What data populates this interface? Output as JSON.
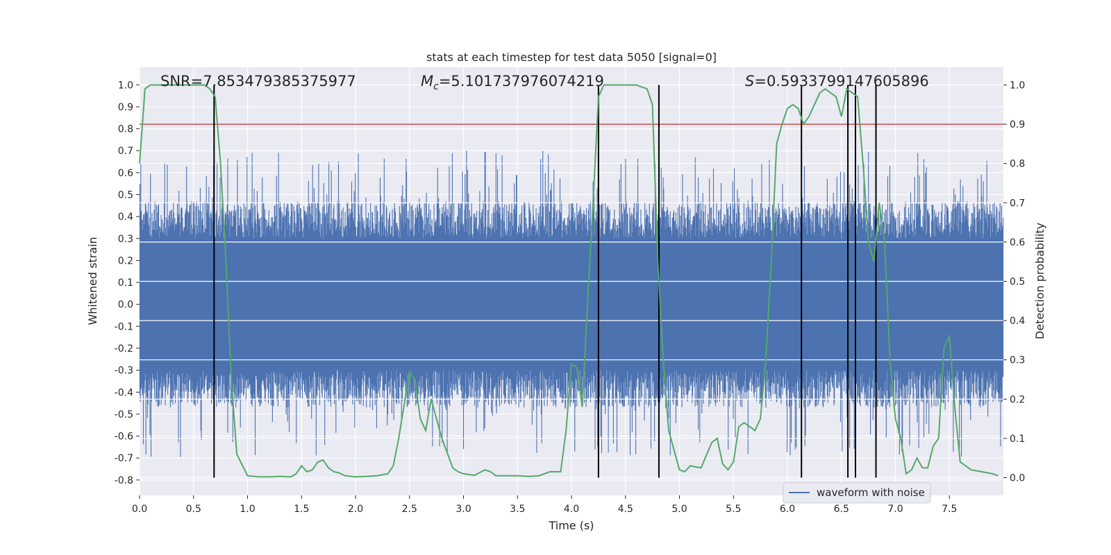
{
  "chart_data": {
    "type": "line",
    "title": "stats at each timestep for test data 5050 [signal=0]",
    "xlabel": "Time (s)",
    "ylabel_left": "Whitened strain",
    "ylabel_right": "Detection probability",
    "xlim": [
      0,
      8
    ],
    "ylim_left": [
      -0.87,
      1.08
    ],
    "ylim_right": [
      -0.045,
      1.045
    ],
    "x_ticks": [
      "0.0",
      "0.5",
      "1.0",
      "1.5",
      "2.0",
      "2.5",
      "3.0",
      "3.5",
      "4.0",
      "4.5",
      "5.0",
      "5.5",
      "6.0",
      "6.5",
      "7.0",
      "7.5"
    ],
    "y_left_ticks": [
      "-0.8",
      "-0.7",
      "-0.6",
      "-0.5",
      "-0.4",
      "-0.3",
      "-0.2",
      "-0.1",
      "0.0",
      "0.1",
      "0.2",
      "0.3",
      "0.4",
      "0.5",
      "0.6",
      "0.7",
      "0.8",
      "0.9",
      "1.0"
    ],
    "y_right_ticks": [
      "0.0",
      "0.1",
      "0.2",
      "0.3",
      "0.4",
      "0.5",
      "0.6",
      "0.7",
      "0.8",
      "0.9",
      "1.0"
    ],
    "grid": true,
    "annotations": {
      "snr": "SNR=7.853479385375977",
      "mc_sym": "M",
      "mc_sub": "c",
      "mc_val": "=5.101737976074219",
      "s_sym": "S",
      "s_val": "=0.5933799147605896"
    },
    "legend": {
      "placement": "lower-right",
      "entries": [
        "waveform with noise"
      ]
    },
    "series": [
      {
        "name": "waveform with noise",
        "axis": "left",
        "color": "#4c72b0",
        "description_stats": {
          "n_samples": 16384,
          "dense_band": [
            -0.3,
            0.3
          ],
          "typical_extreme": [
            -0.7,
            0.7
          ]
        }
      },
      {
        "axis": "right",
        "color": "#55a868",
        "x": [
          0.0,
          0.05,
          0.1,
          0.2,
          0.3,
          0.4,
          0.5,
          0.6,
          0.65,
          0.7,
          0.75,
          0.8,
          0.85,
          0.9,
          1.0,
          1.1,
          1.2,
          1.3,
          1.4,
          1.45,
          1.5,
          1.55,
          1.6,
          1.65,
          1.7,
          1.75,
          1.8,
          1.85,
          1.9,
          2.0,
          2.1,
          2.2,
          2.3,
          2.35,
          2.4,
          2.5,
          2.55,
          2.6,
          2.65,
          2.7,
          2.75,
          2.8,
          2.9,
          2.95,
          3.0,
          3.1,
          3.2,
          3.25,
          3.3,
          3.4,
          3.5,
          3.6,
          3.7,
          3.8,
          3.9,
          3.95,
          4.0,
          4.05,
          4.1,
          4.15,
          4.2,
          4.25,
          4.3,
          4.35,
          4.4,
          4.5,
          4.6,
          4.7,
          4.75,
          4.8,
          4.85,
          4.9,
          5.0,
          5.05,
          5.1,
          5.2,
          5.3,
          5.35,
          5.4,
          5.45,
          5.5,
          5.55,
          5.6,
          5.65,
          5.7,
          5.75,
          5.8,
          5.85,
          5.9,
          5.95,
          6.0,
          6.05,
          6.1,
          6.15,
          6.2,
          6.25,
          6.3,
          6.35,
          6.4,
          6.45,
          6.5,
          6.55,
          6.6,
          6.65,
          6.7,
          6.75,
          6.8,
          6.85,
          6.9,
          6.95,
          7.0,
          7.05,
          7.1,
          7.15,
          7.2,
          7.25,
          7.3,
          7.35,
          7.4,
          7.45,
          7.5,
          7.55,
          7.6,
          7.65,
          7.7,
          7.8,
          7.9,
          7.95
        ],
        "values": [
          0.8,
          0.99,
          1.0,
          1.0,
          1.0,
          1.0,
          1.0,
          1.0,
          0.99,
          0.97,
          0.8,
          0.55,
          0.25,
          0.06,
          0.005,
          0.002,
          0.002,
          0.003,
          0.002,
          0.01,
          0.03,
          0.015,
          0.02,
          0.04,
          0.045,
          0.025,
          0.015,
          0.012,
          0.005,
          0.002,
          0.003,
          0.005,
          0.01,
          0.03,
          0.1,
          0.27,
          0.25,
          0.15,
          0.12,
          0.2,
          0.15,
          0.1,
          0.025,
          0.015,
          0.01,
          0.006,
          0.02,
          0.015,
          0.005,
          0.005,
          0.005,
          0.003,
          0.005,
          0.015,
          0.015,
          0.12,
          0.29,
          0.28,
          0.18,
          0.45,
          0.7,
          0.97,
          1.0,
          1.0,
          1.0,
          1.0,
          1.0,
          0.99,
          0.95,
          0.55,
          0.3,
          0.12,
          0.02,
          0.015,
          0.03,
          0.025,
          0.09,
          0.1,
          0.035,
          0.02,
          0.04,
          0.13,
          0.14,
          0.13,
          0.12,
          0.15,
          0.3,
          0.55,
          0.85,
          0.9,
          0.94,
          0.95,
          0.94,
          0.9,
          0.92,
          0.95,
          0.98,
          0.99,
          0.98,
          0.97,
          0.92,
          0.99,
          0.98,
          0.97,
          0.8,
          0.6,
          0.55,
          0.7,
          0.6,
          0.3,
          0.15,
          0.1,
          0.01,
          0.02,
          0.05,
          0.025,
          0.025,
          0.08,
          0.1,
          0.33,
          0.36,
          0.18,
          0.04,
          0.03,
          0.02,
          0.015,
          0.01,
          0.005
        ]
      }
    ],
    "threshold_line": {
      "axis": "right",
      "value": 0.9,
      "color": "#c44e52"
    },
    "vertical_markers": {
      "color": "#000000",
      "x": [
        0.69,
        4.25,
        4.81,
        6.13,
        6.56,
        6.63,
        6.82
      ],
      "ymin": 0.0,
      "ymax": 1.0
    }
  }
}
